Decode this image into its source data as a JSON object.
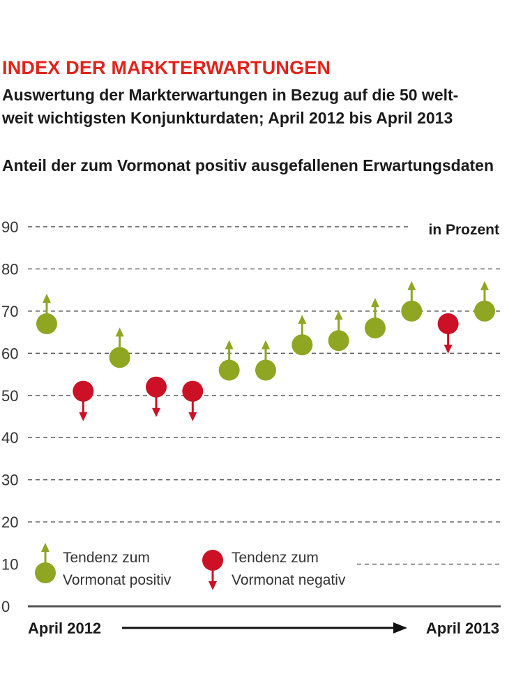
{
  "header": {
    "title": "INDEX DER MARKTERWARTUNGEN",
    "subtitle": "Auswertung der Markterwartungen in Bezug auf die 50 welt-weit wichtigsten Konjunkturdaten; April 2012 bis April 2013",
    "subtitle_line1": "Auswertung der Markterwartungen in Bezug auf die 50 welt-",
    "subtitle_line2": "weit wichtigsten Konjunkturdaten; April 2012 bis April 2013",
    "chart_heading": "Anteil der zum Vormonat positiv ausgefallenen Erwartungsdaten"
  },
  "colors": {
    "positive": "#8fa623",
    "negative": "#cc1025",
    "grid": "#555555",
    "title": "#e2231a"
  },
  "chart_data": {
    "type": "scatter",
    "title": "Anteil der zum Vormonat positiv ausgefallenen Erwartungsdaten",
    "unit": "in Prozent",
    "ylim": [
      0,
      90
    ],
    "yticks": [
      0,
      10,
      20,
      30,
      40,
      50,
      60,
      70,
      80,
      90
    ],
    "grid": true,
    "x_start_label": "April 2012",
    "x_end_label": "April 2013",
    "points": [
      {
        "value": 67,
        "tendency": "positiv"
      },
      {
        "value": 51,
        "tendency": "negativ"
      },
      {
        "value": 59,
        "tendency": "positiv"
      },
      {
        "value": 52,
        "tendency": "negativ"
      },
      {
        "value": 51,
        "tendency": "negativ"
      },
      {
        "value": 56,
        "tendency": "positiv"
      },
      {
        "value": 56,
        "tendency": "positiv"
      },
      {
        "value": 62,
        "tendency": "positiv"
      },
      {
        "value": 63,
        "tendency": "positiv"
      },
      {
        "value": 66,
        "tendency": "positiv"
      },
      {
        "value": 70,
        "tendency": "positiv"
      },
      {
        "value": 67,
        "tendency": "negativ"
      },
      {
        "value": 70,
        "tendency": "positiv"
      }
    ],
    "legend": {
      "placement": "bottom",
      "positive_line1": "Tendenz zum",
      "positive_line2": "Vormonat positiv",
      "negative_line1": "Tendenz zum",
      "negative_line2": "Vormonat negativ"
    }
  }
}
